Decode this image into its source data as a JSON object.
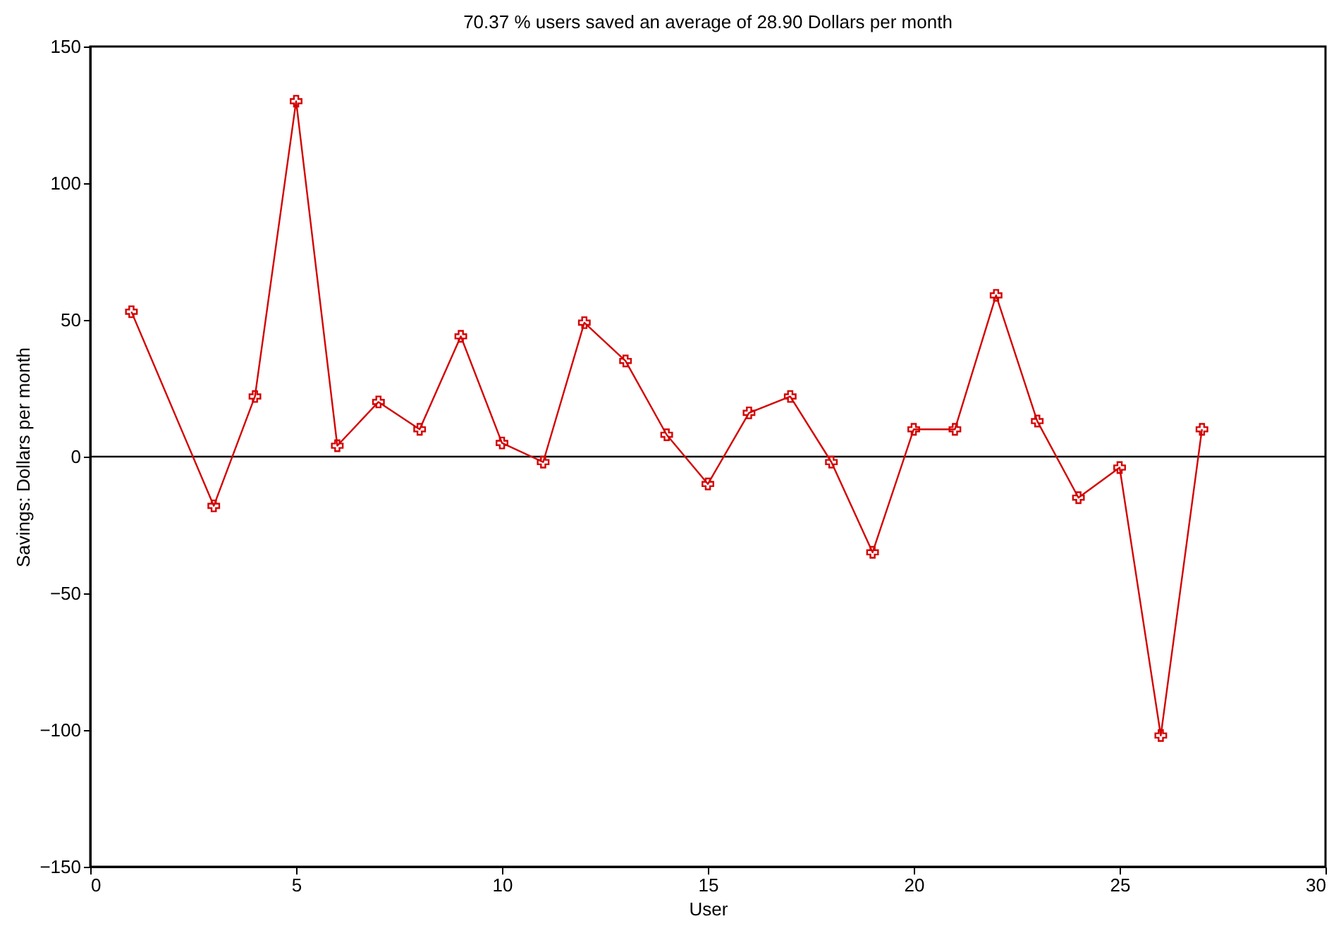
{
  "chart_data": {
    "type": "line",
    "title": "70.37 % users saved an average of   28.90 Dollars per month",
    "xlabel": "User",
    "ylabel": "Savings: Dollars per month",
    "series": [
      {
        "color": "#d40000",
        "x": [
          1,
          3,
          4,
          5,
          6,
          7,
          8,
          9,
          10,
          11,
          12,
          13,
          14,
          15,
          16,
          17,
          18,
          19,
          20,
          21,
          22,
          23,
          24,
          25,
          26,
          27
        ],
        "values": [
          53,
          -18,
          22,
          130,
          4,
          20,
          10,
          44,
          5,
          -2,
          49,
          35,
          8,
          -10,
          16,
          22,
          -2,
          -35,
          10,
          10,
          59,
          13,
          -15,
          -4,
          -102,
          10
        ]
      }
    ],
    "xlim": [
      0,
      30
    ],
    "xticks": [
      0,
      5,
      10,
      15,
      20,
      25,
      30
    ],
    "ylim": [
      -150,
      150
    ],
    "yticks": [
      -150,
      -100,
      -50,
      0,
      50,
      100,
      150
    ],
    "ref_lines": [
      {
        "axis": "y",
        "value": 0,
        "color": "#000000",
        "line_style": "solid"
      }
    ],
    "grid": false,
    "marker": "cross",
    "line_style": "solid"
  }
}
